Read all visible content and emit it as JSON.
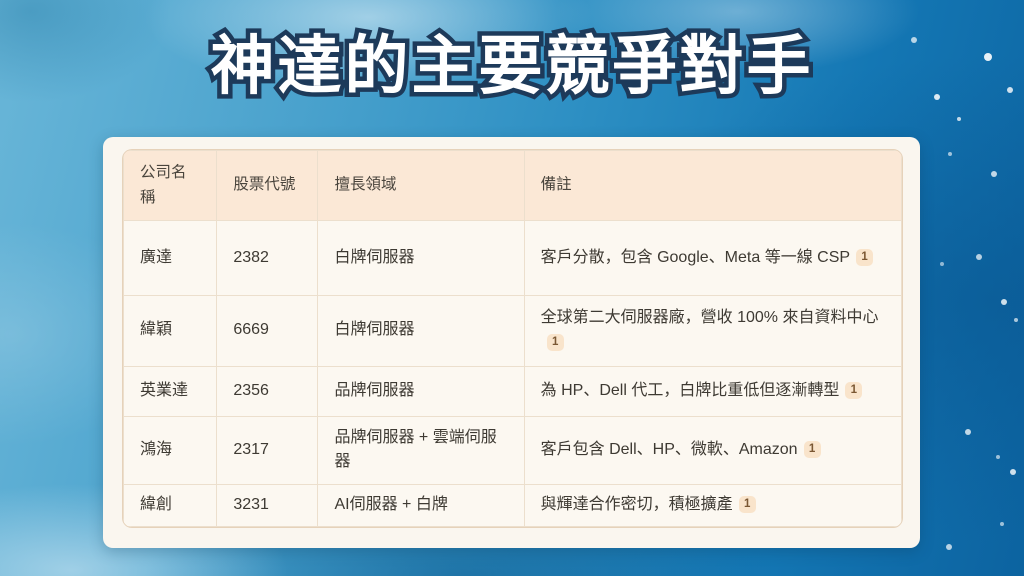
{
  "title": "神達的主要競爭對手",
  "table": {
    "headers": [
      "公司名稱",
      "股票代號",
      "擅長領域",
      "備註"
    ],
    "rows": [
      {
        "company": "廣達",
        "ticker": "2382",
        "field": "白牌伺服器",
        "note": "客戶分散，包含 Google、Meta 等一線 CSP",
        "citation": "1"
      },
      {
        "company": "緯穎",
        "ticker": "6669",
        "field": "白牌伺服器",
        "note": "全球第二大伺服器廠，營收 100% 來自資料中心",
        "citation": "1"
      },
      {
        "company": "英業達",
        "ticker": "2356",
        "field": "品牌伺服器",
        "note": "為 HP、Dell 代工，白牌比重低但逐漸轉型",
        "citation": "1"
      },
      {
        "company": "鴻海",
        "ticker": "2317",
        "field": "品牌伺服器 + 雲端伺服器",
        "note": "客戶包含 Dell、HP、微軟、Amazon",
        "citation": "1"
      },
      {
        "company": "緯創",
        "ticker": "3231",
        "field": "AI伺服器 + 白牌",
        "note": "與輝達合作密切，積極擴產",
        "citation": "1"
      }
    ]
  },
  "colors": {
    "title_fill": "#ffffff",
    "title_outline": "#1d3a5a",
    "card_bg": "#faf6ef",
    "table_bg": "#fcf8f1",
    "header_bg": "#fbe8d6",
    "cell_border": "#ecdfcd",
    "text": "#3e3a33",
    "badge_bg": "#f9e4cb",
    "badge_text": "#7a5733",
    "background_blue_light": "#69b6d8",
    "background_blue_dark": "#0c63a0"
  }
}
